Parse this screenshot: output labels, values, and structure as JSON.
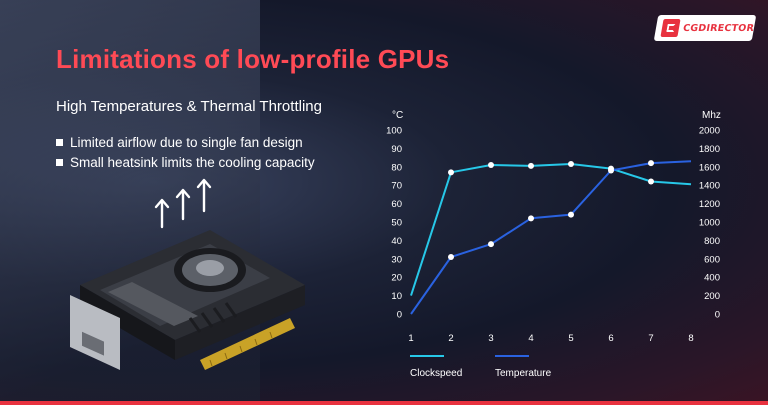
{
  "logo": {
    "text": "CGDIRECTOR"
  },
  "title": "Limitations of low-profile GPUs",
  "subtitle": "High Temperatures & Thermal Throttling",
  "bullets": [
    "Limited airflow due to single fan design",
    "Small heatsink limits the cooling capacity"
  ],
  "icons": {
    "arrows": "up-arrow-icon",
    "gpu": "graphics-card-illustration",
    "bullet": "square-bullet"
  },
  "colors": {
    "title": "#ff4a55",
    "clockspeed": "#27c8e8",
    "temperature": "#2a62e0",
    "brand": "#e8323f"
  },
  "chart_data": {
    "type": "line",
    "x": [
      1,
      2,
      3,
      4,
      5,
      6,
      7,
      8
    ],
    "left_axis": {
      "unit_label": "°C",
      "ylim": [
        0,
        100
      ],
      "ticks": [
        0,
        10,
        20,
        30,
        40,
        50,
        60,
        70,
        80,
        90,
        100
      ]
    },
    "right_axis": {
      "unit_label": "Mhz",
      "ylim": [
        0,
        2000
      ],
      "ticks": [
        0,
        200,
        400,
        600,
        800,
        1000,
        1200,
        1400,
        1600,
        1800,
        2000
      ]
    },
    "series": [
      {
        "name": "Clockspeed",
        "axis": "left",
        "color": "#27c8e8",
        "values": [
          10,
          77,
          81,
          80.5,
          81.5,
          79,
          72,
          70.5
        ],
        "markers": [
          false,
          true,
          true,
          true,
          true,
          true,
          true,
          false
        ]
      },
      {
        "name": "Temperature",
        "axis": "left",
        "color": "#2a62e0",
        "values": [
          0,
          31,
          38,
          52,
          54,
          78,
          82,
          83
        ],
        "markers": [
          false,
          true,
          true,
          true,
          true,
          true,
          true,
          false
        ]
      }
    ],
    "legend": {
      "placement": "bottom-left",
      "entries": [
        "Clockspeed",
        "Temperature"
      ]
    },
    "grid": false
  }
}
